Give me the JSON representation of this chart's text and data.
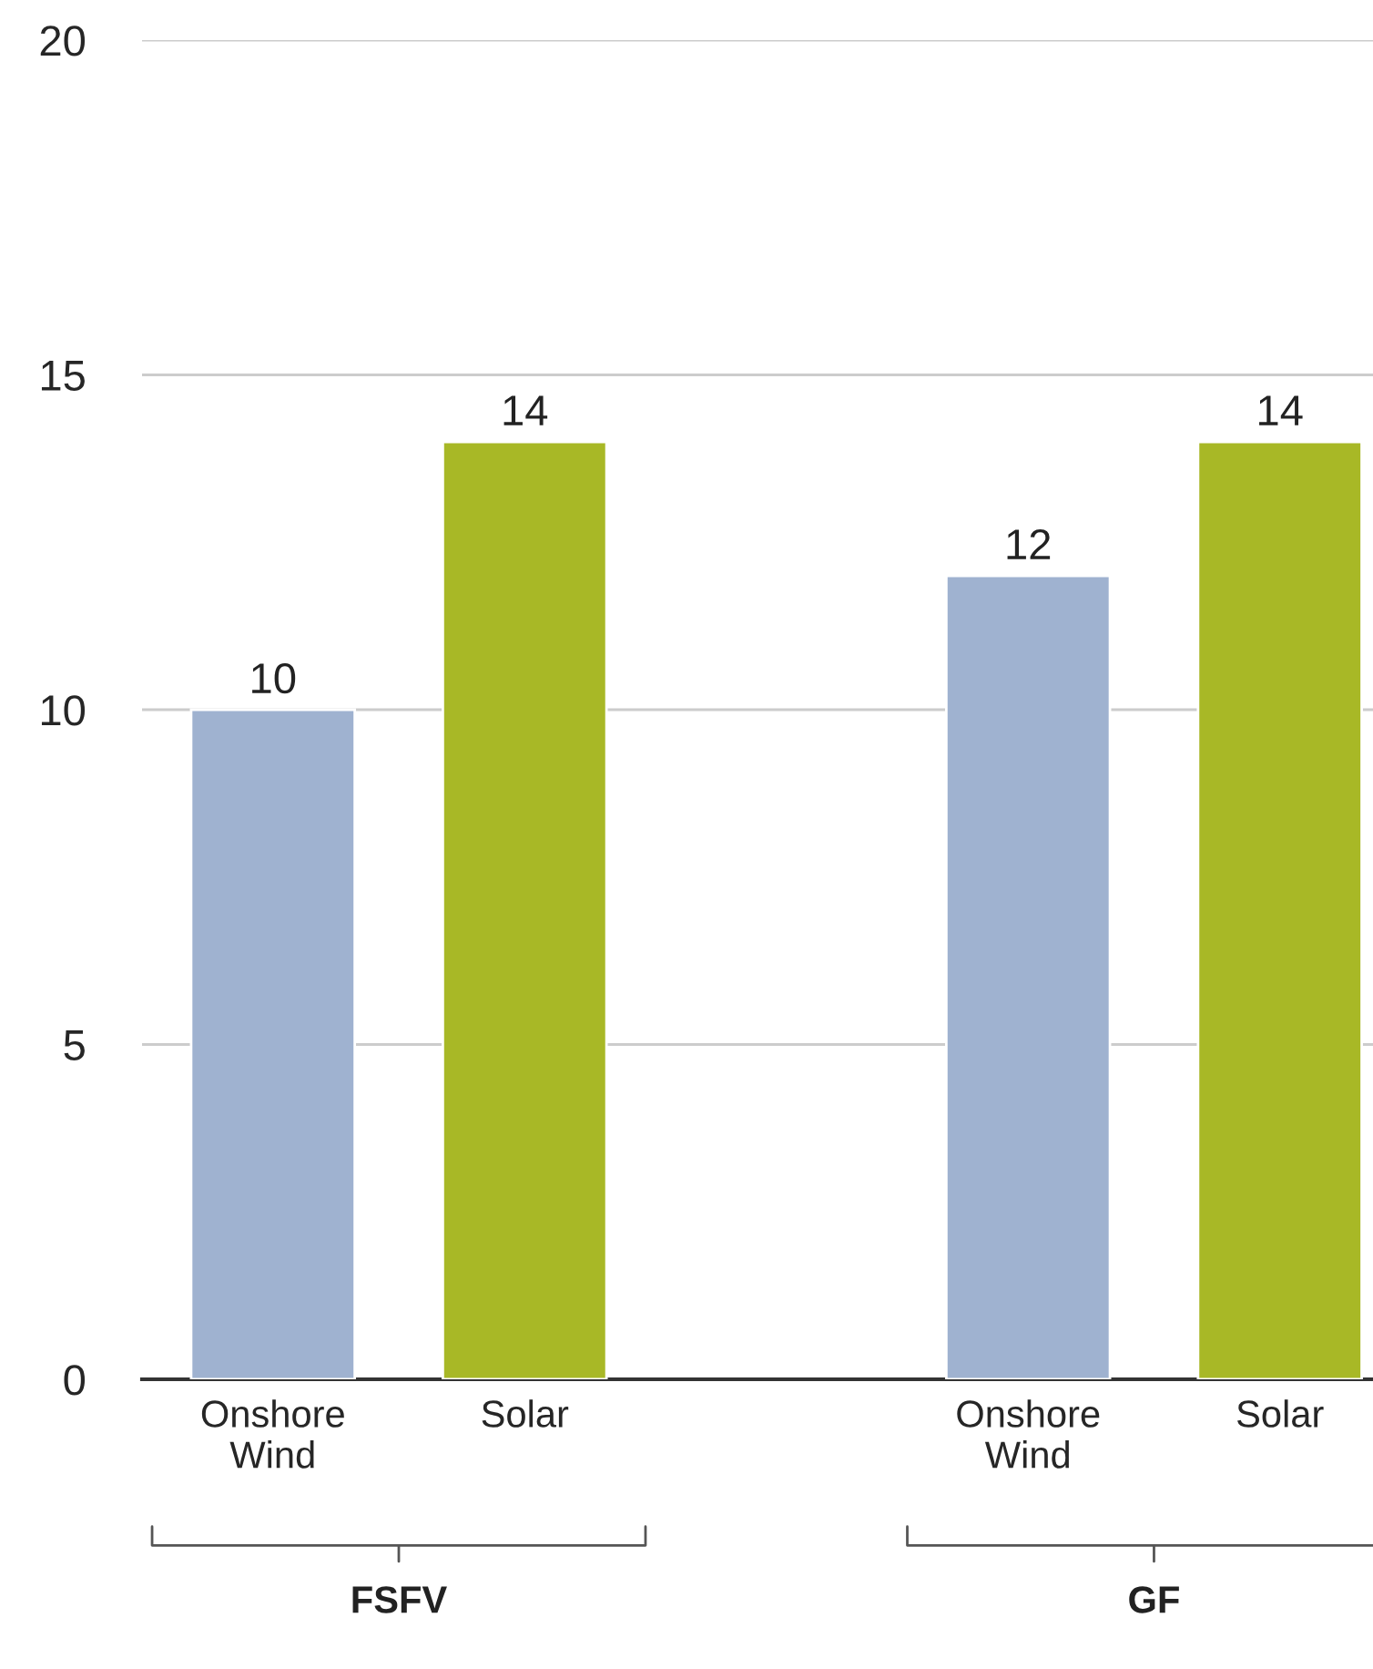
{
  "chart_data": {
    "type": "bar",
    "categories": [
      "Onshore Wind",
      "Solar",
      null,
      "Onshore Wind",
      "Solar"
    ],
    "values": [
      10,
      14,
      null,
      12,
      14
    ],
    "colors": [
      "#9fb2d0",
      "#a8b826",
      null,
      "#9fb2d0",
      "#a8b826"
    ],
    "ylim": [
      0,
      20
    ],
    "yticks": [
      0,
      5,
      10,
      15,
      20
    ],
    "grid": "y",
    "data_labels": true,
    "annotations": [
      "FSFV",
      "GF"
    ]
  }
}
